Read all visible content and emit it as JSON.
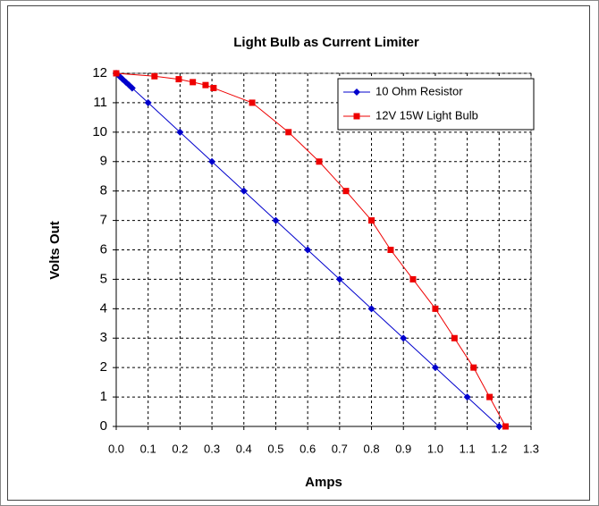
{
  "chart_data": {
    "type": "line",
    "title": "Light Bulb as Current Limiter",
    "x_label": "Amps",
    "y_label": "Volts Out",
    "xlim": [
      0,
      1.3
    ],
    "ylim": [
      0,
      12
    ],
    "xticks": [
      {
        "value": 0,
        "label": "0.0"
      },
      0.1,
      0.2,
      0.3,
      0.4,
      0.5,
      0.6,
      0.7,
      0.8,
      0.9,
      {
        "value": 1,
        "label": "1.0"
      },
      1.1,
      1.2,
      1.3
    ],
    "yticks": [
      0,
      1,
      2,
      3,
      4,
      5,
      6,
      7,
      8,
      9,
      10,
      11,
      12
    ],
    "grid": true,
    "legend": "top-right",
    "series": [
      {
        "name": "10 Ohm Resistor",
        "color": "#0000cc",
        "marker": "diamond",
        "x": [
          0,
          0.01,
          0.02,
          0.03,
          0.04,
          0.05,
          0.1,
          0.2,
          0.3,
          0.4,
          0.5,
          0.6,
          0.7,
          0.8,
          0.9,
          1.0,
          1.1,
          1.2
        ],
        "values": [
          12,
          11.9,
          11.8,
          11.7,
          11.6,
          11.5,
          11,
          10,
          9,
          8,
          7,
          6,
          5,
          4,
          3,
          2,
          1,
          0
        ]
      },
      {
        "name": "12V 15W Light Bulb",
        "color": "#ee0000",
        "marker": "square",
        "x": [
          0,
          0.12,
          0.196,
          0.24,
          0.28,
          0.305,
          0.426,
          0.54,
          0.636,
          0.72,
          0.8,
          0.86,
          0.93,
          1.0,
          1.06,
          1.12,
          1.17,
          1.22
        ],
        "values": [
          12,
          11.9,
          11.8,
          11.7,
          11.6,
          11.5,
          11,
          10,
          9,
          8,
          7,
          6,
          5,
          4,
          3,
          2,
          1,
          0
        ]
      }
    ]
  }
}
